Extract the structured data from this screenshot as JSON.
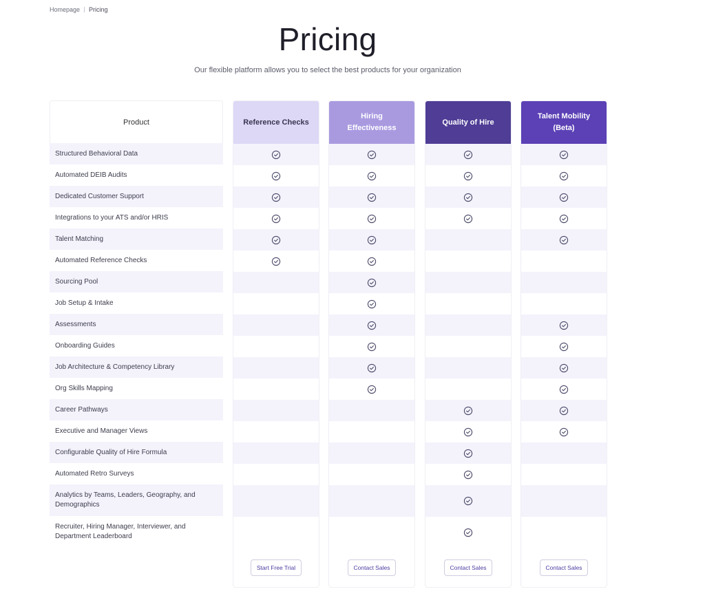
{
  "breadcrumb": {
    "home": "Homepage",
    "current": "Pricing"
  },
  "title": "Pricing",
  "subtitle": "Our flexible platform allows you to select the best products for your organization",
  "product_header": "Product",
  "colors": {
    "reference_checks_bg": "#ddd8f6",
    "reference_checks_text": "#3a3550",
    "hiring_effectiveness_bg": "#a99ae0",
    "quality_of_hire_bg": "#4f3d96",
    "talent_mobility_bg": "#5b41b5",
    "row_shade": "#f4f3fc",
    "check_icon": "#4a4968",
    "button_text": "#4b3ba0"
  },
  "plans": [
    {
      "name": "Reference Checks",
      "cta": "Start Free Trial"
    },
    {
      "name": "Hiring Effectiveness",
      "cta": "Contact Sales"
    },
    {
      "name": "Quality of Hire",
      "cta": "Contact Sales"
    },
    {
      "name": "Talent Mobility (Beta)",
      "cta": "Contact Sales"
    }
  ],
  "features": [
    {
      "label": "Structured Behavioral Data",
      "checks": [
        true,
        true,
        true,
        true
      ]
    },
    {
      "label": "Automated DEIB Audits",
      "checks": [
        true,
        true,
        true,
        true
      ]
    },
    {
      "label": "Dedicated Customer Support",
      "checks": [
        true,
        true,
        true,
        true
      ]
    },
    {
      "label": "Integrations to your ATS and/or HRIS",
      "checks": [
        true,
        true,
        true,
        true
      ]
    },
    {
      "label": "Talent Matching",
      "checks": [
        true,
        true,
        false,
        true
      ]
    },
    {
      "label": "Automated Reference Checks",
      "checks": [
        true,
        true,
        false,
        false
      ]
    },
    {
      "label": "Sourcing Pool",
      "checks": [
        false,
        true,
        false,
        false
      ]
    },
    {
      "label": "Job Setup & Intake",
      "checks": [
        false,
        true,
        false,
        false
      ]
    },
    {
      "label": "Assessments",
      "checks": [
        false,
        true,
        false,
        true
      ]
    },
    {
      "label": "Onboarding Guides",
      "checks": [
        false,
        true,
        false,
        true
      ]
    },
    {
      "label": "Job Architecture & Competency Library",
      "checks": [
        false,
        true,
        false,
        true
      ]
    },
    {
      "label": "Org Skills Mapping",
      "checks": [
        false,
        true,
        false,
        true
      ]
    },
    {
      "label": "Career Pathways",
      "checks": [
        false,
        false,
        true,
        true
      ]
    },
    {
      "label": "Executive and Manager Views",
      "checks": [
        false,
        false,
        true,
        true
      ]
    },
    {
      "label": "Configurable Quality of Hire Formula",
      "checks": [
        false,
        false,
        true,
        false
      ]
    },
    {
      "label": "Automated Retro Surveys",
      "checks": [
        false,
        false,
        true,
        false
      ]
    },
    {
      "label": "Analytics by Teams, Leaders, Geography, and Demographics",
      "checks": [
        false,
        false,
        true,
        false
      ]
    },
    {
      "label": "Recruiter, Hiring Manager, Interviewer, and Department Leaderboard",
      "checks": [
        false,
        false,
        true,
        false
      ]
    }
  ]
}
